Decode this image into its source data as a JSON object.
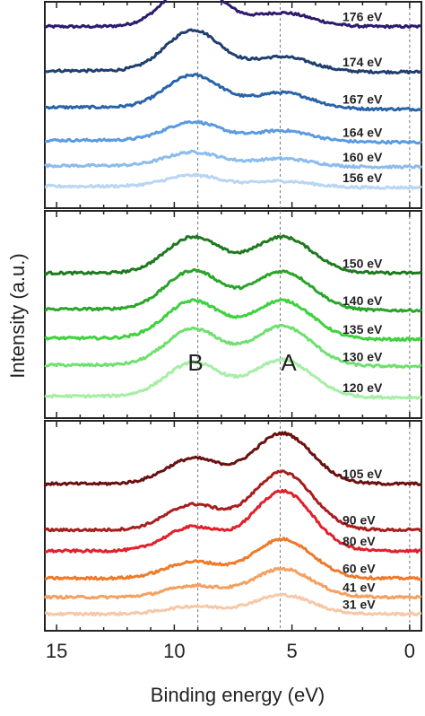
{
  "chart_data": {
    "type": "line",
    "xlabel": "Binding energy (eV)",
    "ylabel": "Intensity (a.u.)",
    "xlim": [
      15.5,
      -0.5
    ],
    "xticks": [
      15,
      10,
      5,
      0
    ],
    "reference_lines_eV": [
      9.0,
      5.5,
      0.0
    ],
    "panels": [
      {
        "name": "top",
        "series": [
          {
            "name": "176 eV",
            "color": "#2e1a6e",
            "baseline": 0.12,
            "a": 0.22,
            "b": 0.72,
            "bg": 0.0
          },
          {
            "name": "174 eV",
            "color": "#1f3f6e",
            "baseline": 0.34,
            "a": 0.24,
            "b": 0.66,
            "bg": 0.02
          },
          {
            "name": "167 eV",
            "color": "#2a64a8",
            "baseline": 0.52,
            "a": 0.26,
            "b": 0.52,
            "bg": 0.03
          },
          {
            "name": "164 eV",
            "color": "#5b9be0",
            "baseline": 0.68,
            "a": 0.18,
            "b": 0.3,
            "bg": 0.03
          },
          {
            "name": "160 eV",
            "color": "#8cbcee",
            "baseline": 0.8,
            "a": 0.13,
            "b": 0.22,
            "bg": 0.02
          },
          {
            "name": "156 eV",
            "color": "#b8d6f3",
            "baseline": 0.9,
            "a": 0.1,
            "b": 0.18,
            "bg": 0.02
          }
        ]
      },
      {
        "name": "middle",
        "series": [
          {
            "name": "150 eV",
            "color": "#1f7a1f",
            "baseline": 0.3,
            "a": 0.58,
            "b": 0.58,
            "bg": 0.0
          },
          {
            "name": "140 eV",
            "color": "#2aa52a",
            "baseline": 0.48,
            "a": 0.62,
            "b": 0.62,
            "bg": 0.02
          },
          {
            "name": "135 eV",
            "color": "#3fd13f",
            "baseline": 0.62,
            "a": 0.62,
            "b": 0.6,
            "bg": 0.02
          },
          {
            "name": "130 eV",
            "color": "#6fe06f",
            "baseline": 0.75,
            "a": 0.64,
            "b": 0.58,
            "bg": 0.02
          },
          {
            "name": "120 eV",
            "color": "#a6eea6",
            "baseline": 0.9,
            "a": 0.6,
            "b": 0.54,
            "bg": 0.02
          }
        ]
      },
      {
        "name": "bottom",
        "series": [
          {
            "name": "105 eV",
            "color": "#6b1010",
            "baseline": 0.3,
            "a": 0.8,
            "b": 0.4,
            "bg": 0.0
          },
          {
            "name": "90 eV",
            "color": "#a81e1e",
            "baseline": 0.52,
            "a": 0.92,
            "b": 0.4,
            "bg": 0.0
          },
          {
            "name": "80 eV",
            "color": "#e0202a",
            "baseline": 0.62,
            "a": 0.95,
            "b": 0.38,
            "bg": 0.0
          },
          {
            "name": "60 eV",
            "color": "#ee7a2a",
            "baseline": 0.75,
            "a": 0.62,
            "b": 0.26,
            "bg": 0.0
          },
          {
            "name": "41 eV",
            "color": "#f4a060",
            "baseline": 0.84,
            "a": 0.45,
            "b": 0.18,
            "bg": 0.0
          },
          {
            "name": "31 eV",
            "color": "#f6c8a8",
            "baseline": 0.92,
            "a": 0.3,
            "b": 0.12,
            "bg": 0.0
          }
        ]
      }
    ],
    "peak_labels": [
      "B",
      "A"
    ]
  }
}
